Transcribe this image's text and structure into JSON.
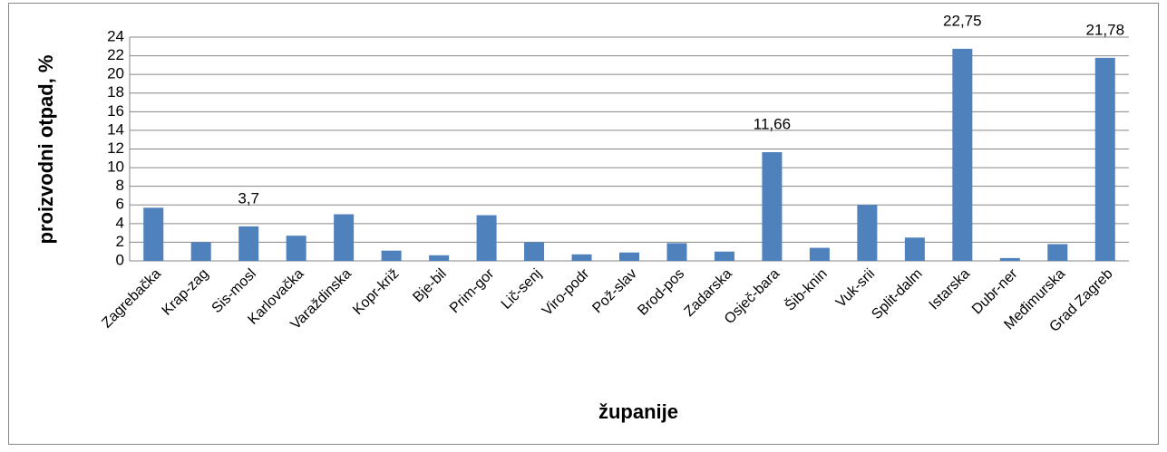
{
  "chart_data": {
    "type": "bar",
    "categories": [
      "Zagrebačka",
      "Krap-zag",
      "Sis-mosl",
      "Karlovačka",
      "Varaždinska",
      "Kopr-križ",
      "Bje-bil",
      "Prim-gor",
      "Lič-senj",
      "Viro-podr",
      "Pož-slav",
      "Brod-pos",
      "Zadarska",
      "Osječ-bara",
      "Šib-knin",
      "Vuk-srii",
      "Split-dalm",
      "Istarska",
      "Dubr-ner",
      "Međimurska",
      "Grad Zagreb"
    ],
    "values": [
      5.7,
      2.0,
      3.7,
      2.7,
      5.0,
      1.1,
      0.6,
      4.9,
      2.0,
      0.7,
      0.9,
      1.9,
      1.0,
      11.66,
      1.4,
      6.0,
      2.5,
      22.75,
      0.3,
      1.8,
      21.78
    ],
    "value_labels": [
      null,
      null,
      "3,7",
      null,
      null,
      null,
      null,
      null,
      null,
      null,
      null,
      null,
      null,
      "11,66",
      null,
      null,
      null,
      "22,75",
      null,
      null,
      "21,78"
    ],
    "color": "#4f81bd",
    "x_label": "županije",
    "y_label": "proizvodni otpad, %",
    "ylim": [
      0,
      24
    ],
    "yticks": [
      0,
      2,
      4,
      6,
      8,
      10,
      12,
      14,
      16,
      18,
      20,
      22,
      24
    ],
    "grid": true
  }
}
